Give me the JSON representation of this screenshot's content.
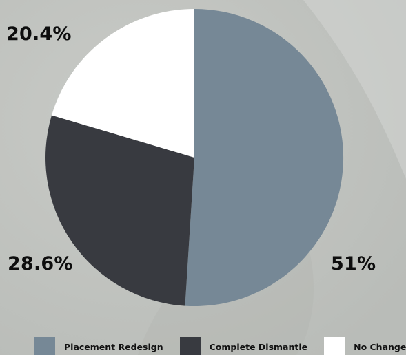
{
  "chart_data": {
    "type": "pie",
    "slices": [
      {
        "label": "Placement Redesign",
        "value": 51,
        "display": "51%",
        "color": "#768896"
      },
      {
        "label": "Complete Dismantle",
        "value": 28.6,
        "display": "28.6%",
        "color": "#383a40"
      },
      {
        "label": "No Change",
        "value": 20.4,
        "display": "20.4%",
        "color": "#ffffff"
      }
    ],
    "start_angle_deg": 0,
    "direction": "clockwise",
    "legend_position": "bottom"
  }
}
